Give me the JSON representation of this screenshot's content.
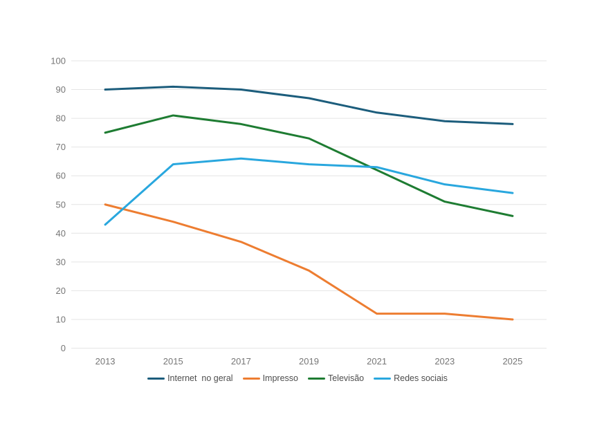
{
  "chart_data": {
    "type": "line",
    "title": "",
    "xlabel": "",
    "ylabel": "",
    "categories": [
      "2013",
      "2015",
      "2017",
      "2019",
      "2021",
      "2023",
      "2025"
    ],
    "series": [
      {
        "name": "Internet  no geral",
        "color": "#1c5d7c",
        "values": [
          90,
          91,
          90,
          87,
          82,
          79,
          78
        ]
      },
      {
        "name": "Impresso",
        "color": "#ed7d31",
        "values": [
          50,
          44,
          37,
          27,
          12,
          12,
          10
        ]
      },
      {
        "name": "Televisão",
        "color": "#1e7c32",
        "values": [
          75,
          81,
          78,
          73,
          62,
          51,
          46
        ]
      },
      {
        "name": "Redes sociais",
        "color": "#29a7de",
        "values": [
          43,
          64,
          66,
          64,
          63,
          57,
          54
        ]
      }
    ],
    "ylim": [
      0,
      100
    ],
    "y_ticks": [
      0,
      10,
      20,
      30,
      40,
      50,
      60,
      70,
      80,
      90,
      100
    ],
    "grid": "horizontal",
    "gridline_color": "#e4e4e4",
    "axis_text_color": "#767676",
    "legend_text_color": "#4d4d4d",
    "legend_position": "bottom",
    "background": "#ffffff"
  }
}
